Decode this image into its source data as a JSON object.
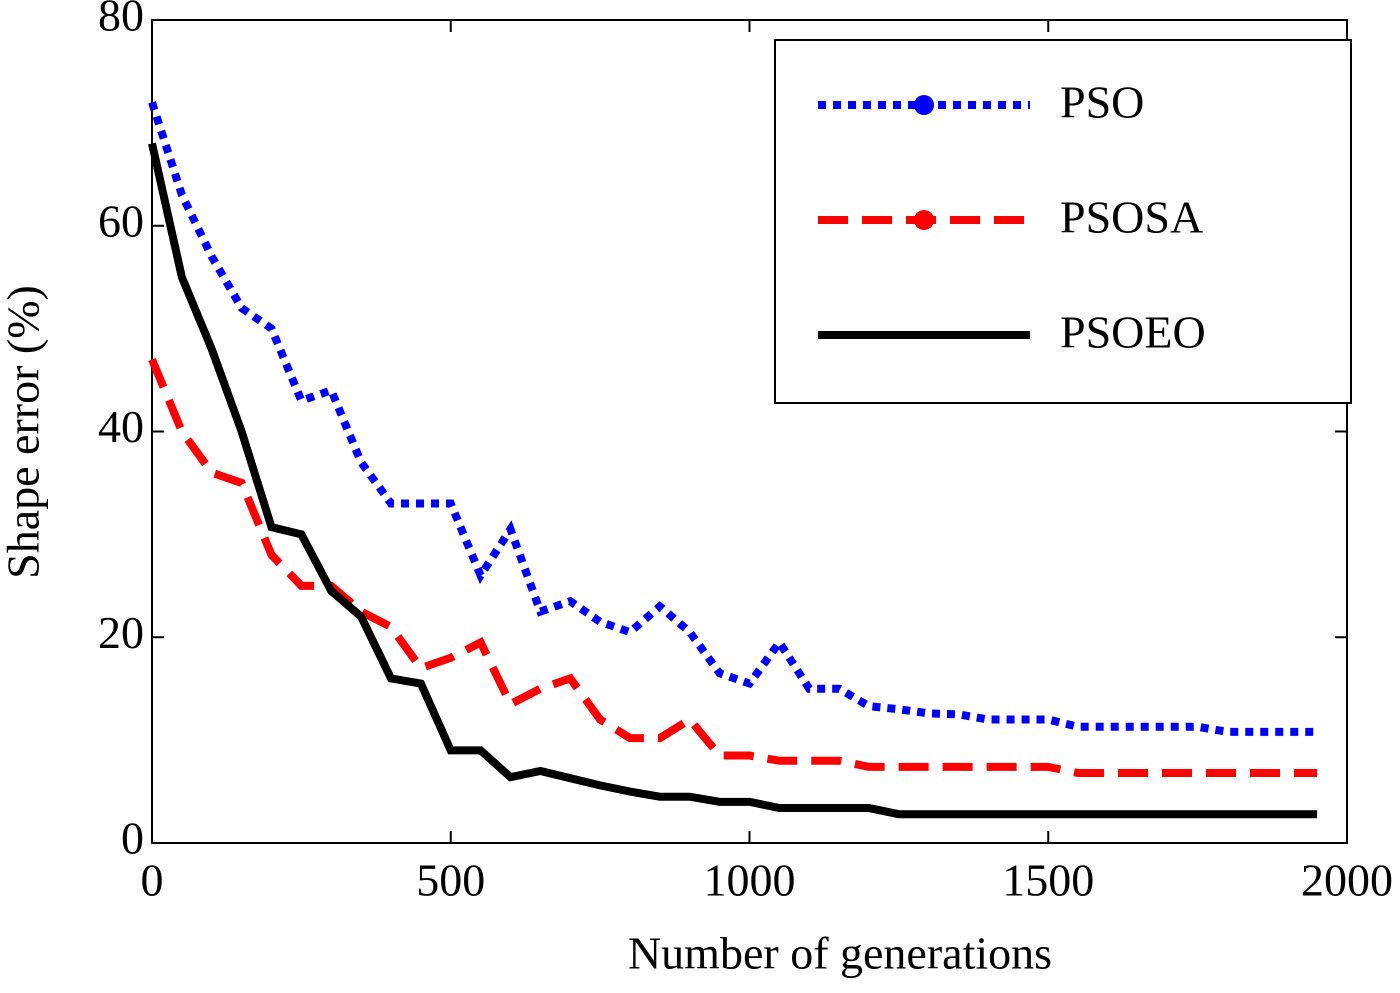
{
  "chart_data": {
    "type": "line",
    "x_label": "Number of generations",
    "y_label": "Shape error (%)",
    "x": [
      0,
      50,
      100,
      150,
      200,
      250,
      300,
      350,
      400,
      450,
      500,
      550,
      600,
      650,
      700,
      750,
      800,
      850,
      900,
      950,
      1000,
      1050,
      1100,
      1150,
      1200,
      1250,
      1300,
      1350,
      1400,
      1450,
      1500,
      1550,
      1600,
      1650,
      1700,
      1750,
      1800,
      1850,
      1900,
      1950
    ],
    "series": [
      {
        "name": "PSO",
        "color": "#0000ff",
        "style": "dotted",
        "marker": "circle",
        "values": [
          72,
          63,
          57,
          52,
          50,
          43,
          44,
          37,
          33,
          33,
          33,
          26,
          30.5,
          22.5,
          23.5,
          21.5,
          20.5,
          23,
          20.5,
          16.5,
          15.5,
          19.5,
          15,
          15,
          13.3,
          13,
          12.6,
          12.5,
          12,
          12,
          12,
          11.3,
          11.3,
          11.3,
          11.3,
          11.3,
          10.8,
          10.8,
          10.8,
          10.8
        ]
      },
      {
        "name": "PSOSA",
        "color": "#ff0000",
        "style": "dashed",
        "marker": "circle",
        "values": [
          47,
          40,
          36,
          35,
          28,
          25,
          25,
          22.5,
          21,
          17,
          18,
          19.5,
          13.5,
          15,
          16,
          12,
          10.2,
          10.2,
          12,
          8.5,
          8.5,
          8,
          8,
          8,
          7.4,
          7.4,
          7.4,
          7.4,
          7.4,
          7.4,
          7.4,
          6.8,
          6.8,
          6.8,
          6.8,
          6.8,
          6.8,
          6.8,
          6.8,
          6.8
        ]
      },
      {
        "name": "PSOEO",
        "color": "#000000",
        "style": "solid",
        "marker": "none",
        "values": [
          68,
          55,
          48,
          40,
          30.7,
          30,
          24.5,
          22,
          16,
          15.5,
          9,
          9,
          6.4,
          7,
          6.3,
          5.6,
          5,
          4.5,
          4.5,
          4,
          4,
          3.4,
          3.4,
          3.4,
          3.4,
          2.8,
          2.8,
          2.8,
          2.8,
          2.8,
          2.8,
          2.8,
          2.8,
          2.8,
          2.8,
          2.8,
          2.8,
          2.8,
          2.8,
          2.8
        ]
      }
    ],
    "xlim": [
      0,
      2000
    ],
    "xticks": [
      0,
      500,
      1000,
      1500,
      2000
    ],
    "ylim": [
      0,
      80
    ],
    "yticks": [
      0,
      20,
      40,
      60,
      80
    ],
    "grid": false,
    "legend": "upper right"
  }
}
